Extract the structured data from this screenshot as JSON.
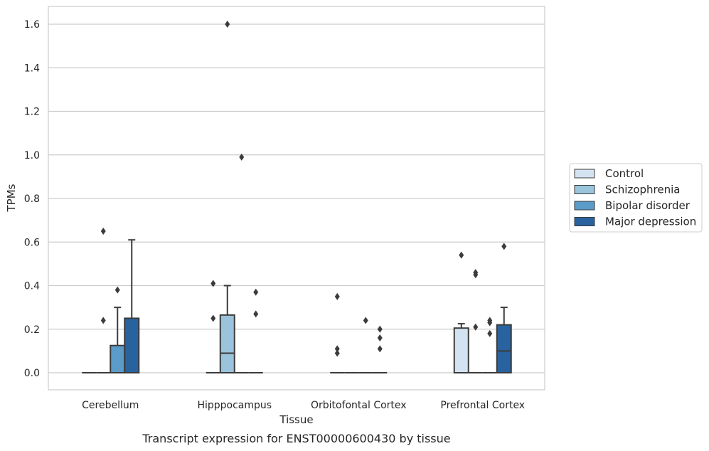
{
  "chart_data": {
    "type": "box",
    "title": "",
    "caption": "Transcript expression for ENST00000600430 by tissue",
    "xlabel": "Tissue",
    "ylabel": "TPMs",
    "ylim": [
      -0.08,
      1.68
    ],
    "yticks": [
      "0.0",
      "0.2",
      "0.4",
      "0.6",
      "0.8",
      "1.0",
      "1.2",
      "1.4",
      "1.6"
    ],
    "ytick_values": [
      0.0,
      0.2,
      0.4,
      0.6,
      0.8,
      1.0,
      1.2,
      1.4,
      1.6
    ],
    "grid": "horizontal",
    "legend_position": "right",
    "categories": [
      "Cerebellum",
      "Hipppocampus",
      "Orbitofontal Cortex",
      "Prefrontal Cortex"
    ],
    "series": [
      {
        "name": "Control",
        "color": "#d3e3f2",
        "boxes": [
          {
            "q1": 0,
            "median": 0,
            "q3": 0,
            "whisker_low": 0,
            "whisker_high": 0,
            "outliers": []
          },
          {
            "q1": 0,
            "median": 0,
            "q3": 0,
            "whisker_low": 0,
            "whisker_high": 0,
            "outliers": [
              0.25,
              0.41
            ]
          },
          {
            "q1": 0,
            "median": 0,
            "q3": 0,
            "whisker_low": 0,
            "whisker_high": 0,
            "outliers": [
              0.09,
              0.11,
              0.35
            ]
          },
          {
            "q1": 0,
            "median": 0,
            "q3": 0.205,
            "whisker_low": 0,
            "whisker_high": 0.225,
            "outliers": [
              0.54
            ]
          }
        ]
      },
      {
        "name": "Schizophrenia",
        "color": "#9ac3dc",
        "boxes": [
          {
            "q1": 0,
            "median": 0,
            "q3": 0,
            "whisker_low": 0,
            "whisker_high": 0,
            "outliers": [
              0.24,
              0.65
            ]
          },
          {
            "q1": 0,
            "median": 0.09,
            "q3": 0.265,
            "whisker_low": 0,
            "whisker_high": 0.4,
            "outliers": [
              1.6
            ]
          },
          {
            "q1": 0,
            "median": 0,
            "q3": 0,
            "whisker_low": 0,
            "whisker_high": 0,
            "outliers": []
          },
          {
            "q1": 0,
            "median": 0,
            "q3": 0,
            "whisker_low": 0,
            "whisker_high": 0,
            "outliers": [
              0.21,
              0.45,
              0.46
            ]
          }
        ]
      },
      {
        "name": "Bipolar disorder",
        "color": "#5a9bc9",
        "boxes": [
          {
            "q1": 0,
            "median": 0,
            "q3": 0.125,
            "whisker_low": 0,
            "whisker_high": 0.3,
            "outliers": [
              0.38
            ]
          },
          {
            "q1": 0,
            "median": 0,
            "q3": 0,
            "whisker_low": 0,
            "whisker_high": 0,
            "outliers": [
              0.99
            ]
          },
          {
            "q1": 0,
            "median": 0,
            "q3": 0,
            "whisker_low": 0,
            "whisker_high": 0,
            "outliers": [
              0.24
            ]
          },
          {
            "q1": 0,
            "median": 0,
            "q3": 0,
            "whisker_low": 0,
            "whisker_high": 0,
            "outliers": [
              0.18,
              0.23,
              0.24
            ]
          }
        ]
      },
      {
        "name": "Major depression",
        "color": "#2863a0",
        "boxes": [
          {
            "q1": 0,
            "median": 0,
            "q3": 0.25,
            "whisker_low": 0,
            "whisker_high": 0.61,
            "outliers": []
          },
          {
            "q1": 0,
            "median": 0,
            "q3": 0,
            "whisker_low": 0,
            "whisker_high": 0,
            "outliers": [
              0.27,
              0.37
            ]
          },
          {
            "q1": 0,
            "median": 0,
            "q3": 0,
            "whisker_low": 0,
            "whisker_high": 0,
            "outliers": [
              0.11,
              0.16,
              0.2
            ]
          },
          {
            "q1": 0,
            "median": 0.1,
            "q3": 0.22,
            "whisker_low": 0,
            "whisker_high": 0.3,
            "outliers": [
              0.58
            ]
          }
        ]
      }
    ]
  }
}
